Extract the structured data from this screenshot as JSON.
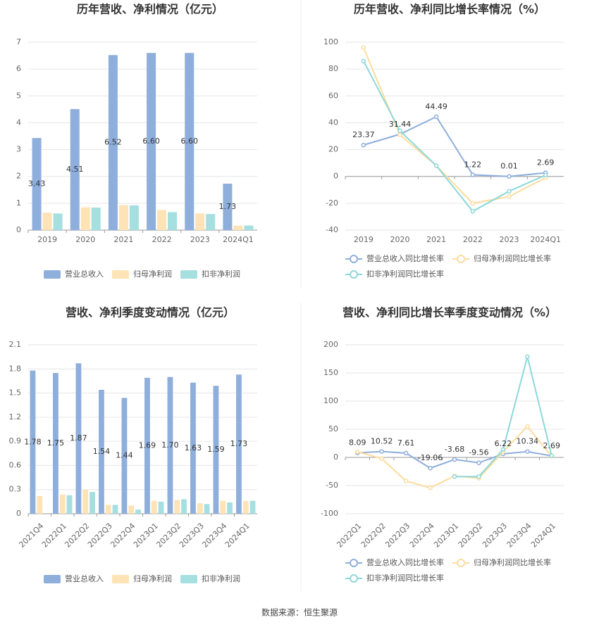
{
  "source": "数据来源：恒生聚源",
  "chart_data": [
    {
      "type": "bar",
      "title": "历年营收、净利情况（亿元）",
      "categories": [
        "2019",
        "2020",
        "2021",
        "2022",
        "2023",
        "2024Q1"
      ],
      "series": [
        {
          "name": "营业总收入",
          "color": "#8eaedc",
          "show_labels": true,
          "values": [
            3.43,
            4.51,
            6.52,
            6.6,
            6.6,
            1.73
          ],
          "value_labels": [
            "3.43",
            "4.51",
            "6.52",
            "6.60",
            "6.60",
            "1.73"
          ]
        },
        {
          "name": "归母净利润",
          "color": "#fde3b5",
          "values": [
            0.65,
            0.85,
            0.93,
            0.75,
            0.62,
            0.17
          ]
        },
        {
          "name": "扣非净利润",
          "color": "#a5dfe0",
          "values": [
            0.62,
            0.84,
            0.92,
            0.67,
            0.6,
            0.17
          ]
        }
      ],
      "ylim": [
        0,
        7
      ],
      "yticks": [
        0,
        1,
        2,
        3,
        4,
        5,
        6,
        7
      ],
      "grid": true
    },
    {
      "type": "line",
      "title": "历年营收、净利同比增长率情况（%）",
      "categories": [
        "2019",
        "2020",
        "2021",
        "2022",
        "2023",
        "2024Q1"
      ],
      "series": [
        {
          "name": "营业总收入同比增长率",
          "color": "#8eaedc",
          "show_labels": true,
          "values": [
            23.37,
            31.44,
            44.49,
            1.22,
            0.01,
            2.69
          ]
        },
        {
          "name": "归母净利润同比增长率",
          "color": "#fddc9d",
          "values": [
            96,
            31,
            8,
            -20,
            -15,
            -1
          ]
        },
        {
          "name": "扣非净利润同比增长率",
          "color": "#8dd8da",
          "values": [
            86,
            34,
            8,
            -26,
            -11,
            1
          ]
        }
      ],
      "ylim": [
        -40,
        100
      ],
      "yticks": [
        -40,
        -20,
        0,
        20,
        40,
        60,
        80,
        100
      ],
      "grid": true
    },
    {
      "type": "bar",
      "title": "营收、净利季度变动情况（亿元）",
      "categories": [
        "2021Q4",
        "2022Q1",
        "2022Q2",
        "2022Q3",
        "2022Q4",
        "2023Q1",
        "2023Q2",
        "2023Q3",
        "2023Q4",
        "2024Q1"
      ],
      "series": [
        {
          "name": "营业总收入",
          "color": "#8eaedc",
          "show_labels": true,
          "values": [
            1.78,
            1.75,
            1.87,
            1.54,
            1.44,
            1.69,
            1.7,
            1.63,
            1.59,
            1.73
          ],
          "value_labels": [
            "1.78",
            "1.75",
            "1.87",
            "1.54",
            "1.44",
            "1.69",
            "1.70",
            "1.63",
            "1.59",
            "1.73"
          ]
        },
        {
          "name": "归母净利润",
          "color": "#fde3b5",
          "values": [
            0.22,
            0.24,
            0.3,
            0.11,
            0.1,
            0.16,
            0.17,
            0.13,
            0.16,
            0.16
          ]
        },
        {
          "name": "扣非净利润",
          "color": "#a5dfe0",
          "values": [
            null,
            0.23,
            0.27,
            0.11,
            0.05,
            0.15,
            0.18,
            0.12,
            0.14,
            0.16
          ]
        }
      ],
      "ylim": [
        0,
        2.1
      ],
      "yticks": [
        0,
        0.3,
        0.6,
        0.9,
        1.2,
        1.5,
        1.8,
        2.1
      ],
      "grid": true
    },
    {
      "type": "line",
      "title": "营收、净利同比增长率季度变动情况（%）",
      "categories": [
        "2022Q1",
        "2022Q2",
        "2022Q3",
        "2022Q4",
        "2023Q1",
        "2023Q2",
        "2023Q3",
        "2023Q4",
        "2024Q1"
      ],
      "series": [
        {
          "name": "营业总收入同比增长率",
          "color": "#8eaedc",
          "show_labels": true,
          "values": [
            8.09,
            10.52,
            7.61,
            -19.06,
            -3.68,
            -9.56,
            6.22,
            10.34,
            2.69
          ]
        },
        {
          "name": "归母净利润同比增长率",
          "color": "#fddc9d",
          "values": [
            10,
            -2,
            -42,
            -54,
            -33,
            -37,
            10,
            55,
            2
          ]
        },
        {
          "name": "扣非净利润同比增长率",
          "color": "#8dd8da",
          "values": [
            null,
            null,
            null,
            null,
            -34,
            -34,
            14,
            179,
            3
          ]
        }
      ],
      "ylim": [
        -100,
        200
      ],
      "yticks": [
        -100,
        -50,
        0,
        50,
        100,
        150,
        200
      ],
      "grid": true
    }
  ]
}
